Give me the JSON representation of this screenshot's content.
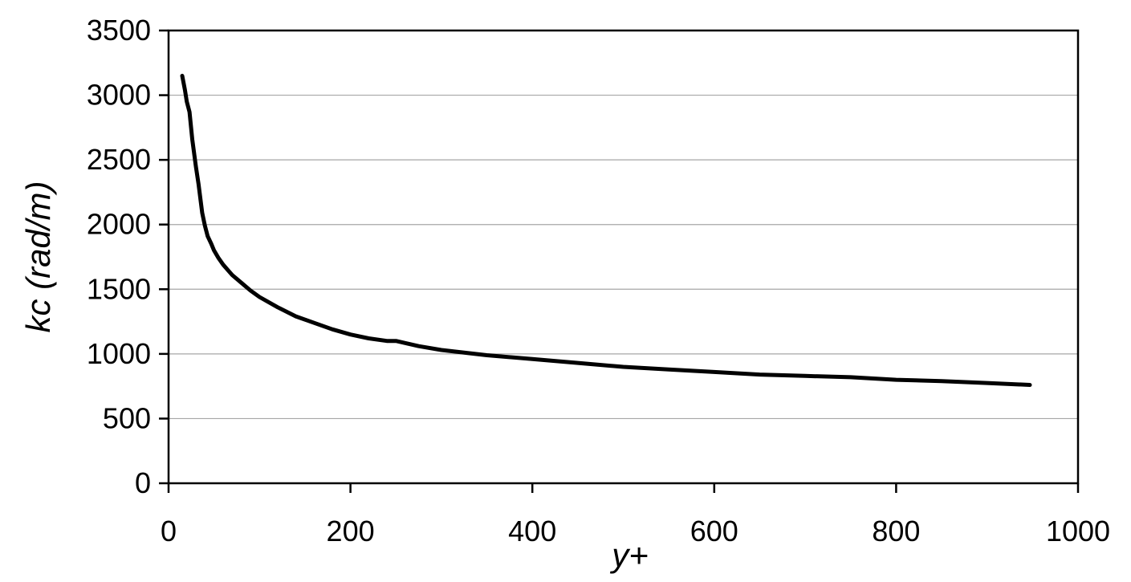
{
  "chart_data": {
    "type": "line",
    "title": "",
    "xlabel": "y+",
    "ylabel": "kc (rad/m)",
    "xlim": [
      0,
      1000
    ],
    "ylim": [
      0,
      3500
    ],
    "xticks": [
      0,
      200,
      400,
      600,
      800,
      1000
    ],
    "yticks": [
      0,
      500,
      1000,
      1500,
      2000,
      2500,
      3000,
      3500
    ],
    "grid": "horizontal",
    "legend": "none",
    "line_color": "#000000",
    "grid_color": "#a6a6a6",
    "series": [
      {
        "x": [
          15,
          18,
          20,
          23,
          26,
          30,
          33,
          37,
          40,
          43,
          47,
          50,
          55,
          60,
          65,
          70,
          80,
          90,
          100,
          120,
          140,
          160,
          180,
          200,
          220,
          240,
          250,
          275,
          300,
          350,
          400,
          450,
          500,
          550,
          600,
          650,
          700,
          750,
          800,
          850,
          900,
          947
        ],
        "y": [
          3150,
          3040,
          2950,
          2870,
          2660,
          2450,
          2310,
          2090,
          1990,
          1910,
          1850,
          1800,
          1740,
          1690,
          1650,
          1610,
          1550,
          1490,
          1440,
          1360,
          1290,
          1240,
          1190,
          1150,
          1120,
          1100,
          1100,
          1060,
          1030,
          990,
          960,
          930,
          900,
          880,
          860,
          840,
          830,
          820,
          800,
          790,
          775,
          760
        ]
      }
    ]
  }
}
